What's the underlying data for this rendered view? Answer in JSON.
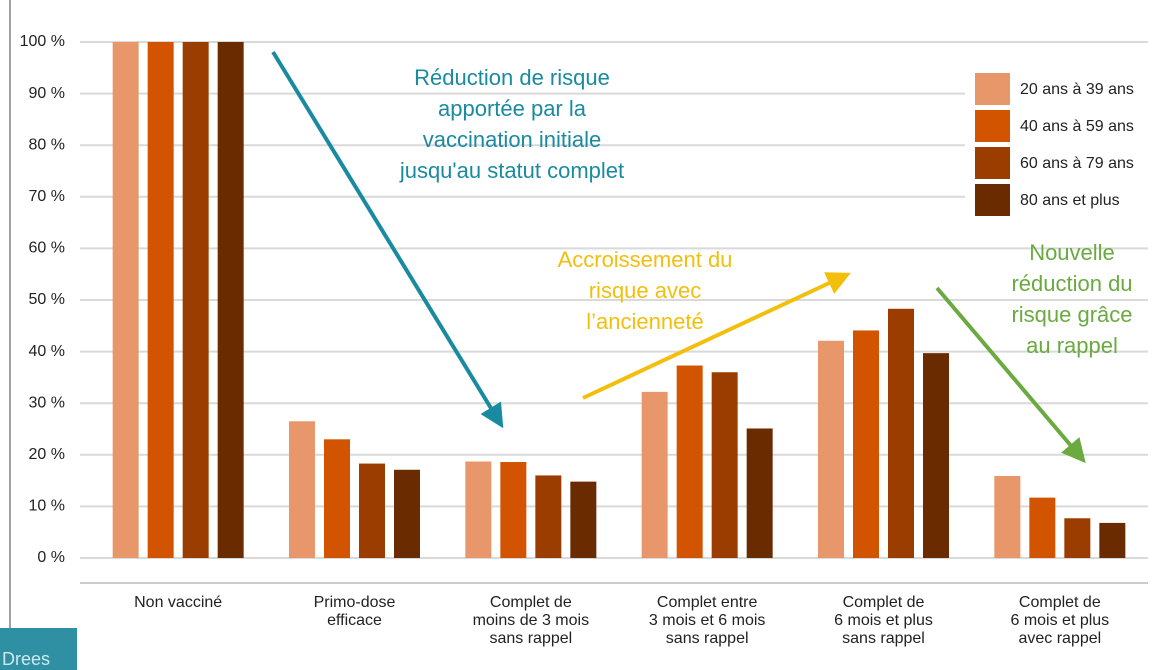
{
  "chart_data": {
    "type": "bar",
    "categories": [
      "Non vacciné",
      "Primo-dose\nefficace",
      "Complet de\nmoins de 3 mois\nsans rappel",
      "Complet entre\n3 mois et 6 mois\nsans rappel",
      "Complet de\n6 mois et plus\nsans rappel",
      "Complet de\n6 mois et plus\navec rappel"
    ],
    "series": [
      {
        "name": "20 ans à 39 ans",
        "color": "#e8976a",
        "values": [
          100,
          26.5,
          18.7,
          32.2,
          42.1,
          15.9
        ]
      },
      {
        "name": "40 ans à 59 ans",
        "color": "#d25400",
        "values": [
          100,
          23,
          18.6,
          37.3,
          44.1,
          11.7
        ]
      },
      {
        "name": "60 ans à 79 ans",
        "color": "#9c3d00",
        "values": [
          100,
          18.3,
          16,
          36,
          48.3,
          7.7
        ]
      },
      {
        "name": "80 ans et plus",
        "color": "#6b2b00",
        "values": [
          100,
          17.1,
          14.8,
          25.1,
          39.7,
          6.8
        ]
      }
    ],
    "ylim": [
      0,
      100
    ],
    "yticks": [
      {
        "value": 0,
        "label": "0 %"
      },
      {
        "value": 10,
        "label": "10 %"
      },
      {
        "value": 20,
        "label": "20 %"
      },
      {
        "value": 30,
        "label": "30 %"
      },
      {
        "value": 40,
        "label": "40 %"
      },
      {
        "value": 50,
        "label": "50 %"
      },
      {
        "value": 60,
        "label": "60 %"
      },
      {
        "value": 70,
        "label": "70 %"
      },
      {
        "value": 80,
        "label": "80 %"
      },
      {
        "value": 90,
        "label": "90 %"
      },
      {
        "value": 100,
        "label": "100 %"
      }
    ],
    "grid": true,
    "legend": "top-right",
    "annotations": [
      {
        "text": "Réduction de risque\napportée par la\nvaccination initiale\njusqu'au statut complet",
        "color": "#1a8aa0"
      },
      {
        "text": "Accroissement du\nrisque avec\nl’ancienneté",
        "color": "#f2bf0c"
      },
      {
        "text": "Nouvelle\nréduction du\nrisque grâce\nau rappel",
        "color": "#6aaa40"
      }
    ],
    "logo": "Drees"
  }
}
